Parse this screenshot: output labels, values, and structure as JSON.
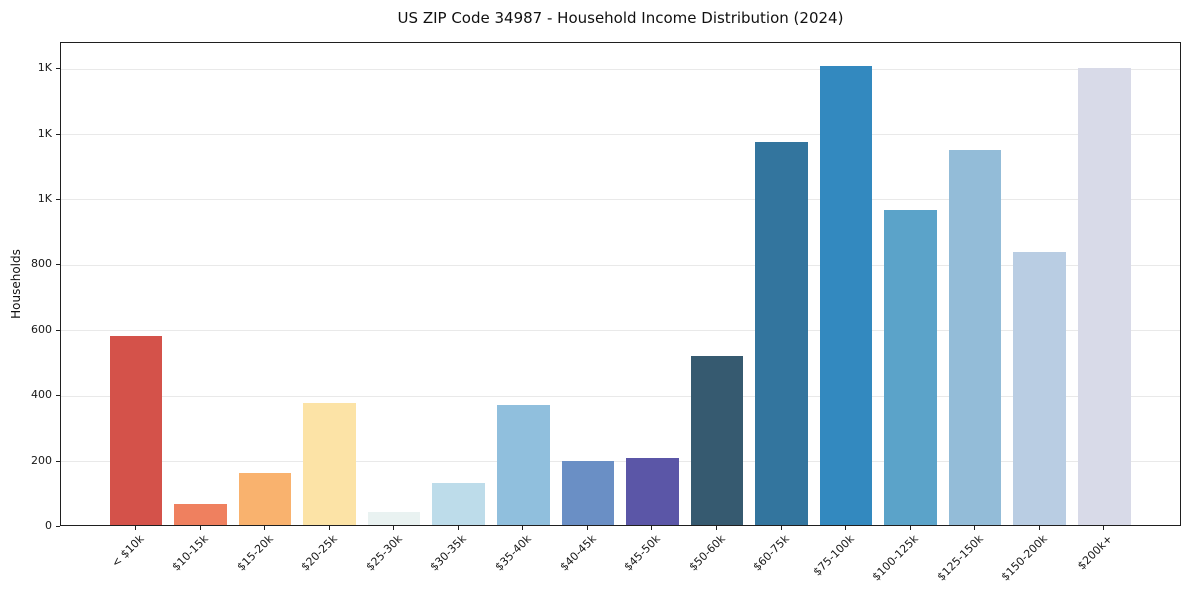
{
  "header": {
    "title": "US ZIP Code 34987 - Household Income Distribution (2024)"
  },
  "chart_data": {
    "type": "bar",
    "title": "US ZIP Code 34987 - Household Income Distribution (2024)",
    "xlabel": "",
    "ylabel": "Households",
    "categories": [
      "< $10k",
      "$10-15k",
      "$15-20k",
      "$20-25k",
      "$25-30k",
      "$30-35k",
      "$35-40k",
      "$40-45k",
      "$45-50k",
      "$50-60k",
      "$60-75k",
      "$75-100k",
      "$100-125k",
      "$125-150k",
      "$150-200k",
      "$200k+"
    ],
    "values": [
      579,
      65,
      158,
      373,
      41,
      129,
      368,
      195,
      204,
      518,
      1170,
      1405,
      964,
      1146,
      836,
      1399
    ],
    "bar_colors": [
      "#d4524a",
      "#ef805f",
      "#f9b26e",
      "#fce3a6",
      "#e9f2f1",
      "#bddcea",
      "#90bfdd",
      "#6a8fc5",
      "#5b56a7",
      "#365a70",
      "#33759e",
      "#3389bf",
      "#5ba3c9",
      "#93bcd8",
      "#b9cde3",
      "#d8dae8"
    ],
    "ylim": [
      0,
      1480
    ],
    "yticks": [
      {
        "value": 0,
        "label": "0"
      },
      {
        "value": 200,
        "label": "200"
      },
      {
        "value": 400,
        "label": "400"
      },
      {
        "value": 600,
        "label": "600"
      },
      {
        "value": 800,
        "label": "800"
      },
      {
        "value": 1000,
        "label": "1K"
      },
      {
        "value": 1200,
        "label": "1K"
      },
      {
        "value": 1400,
        "label": "1K"
      }
    ],
    "grid": "horizontal",
    "legend": "none",
    "style_colors": {
      "grid": "#e9e9e9",
      "spine": "#1f1f1f",
      "text": "#151515",
      "background": "#ffffff"
    }
  }
}
